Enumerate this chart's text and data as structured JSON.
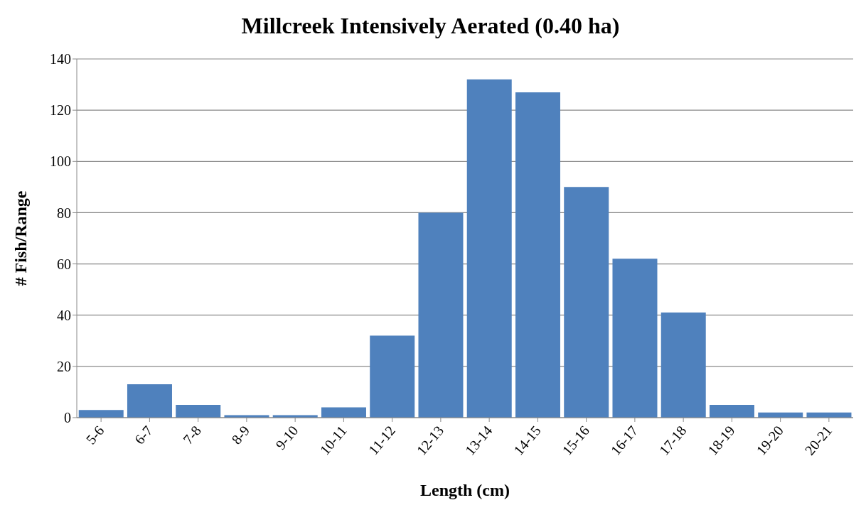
{
  "chart_data": {
    "type": "bar",
    "title": "Millcreek Intensively Aerated (0.40 ha)",
    "xlabel": "Length (cm)",
    "ylabel": "# Fish/Range",
    "categories": [
      "5-6",
      "6-7",
      "7-8",
      "8-9",
      "9-10",
      "10-11",
      "11-12",
      "12-13",
      "13-14",
      "14-15",
      "15-16",
      "16-17",
      "17-18",
      "18-19",
      "19-20",
      "20-21"
    ],
    "values": [
      3,
      13,
      5,
      1,
      1,
      4,
      32,
      80,
      132,
      127,
      90,
      62,
      41,
      5,
      2,
      2
    ],
    "color": "#4f81bd",
    "ylim": [
      0,
      140
    ],
    "yticks": [
      0,
      20,
      40,
      60,
      80,
      100,
      120,
      140
    ],
    "grid": "y"
  }
}
